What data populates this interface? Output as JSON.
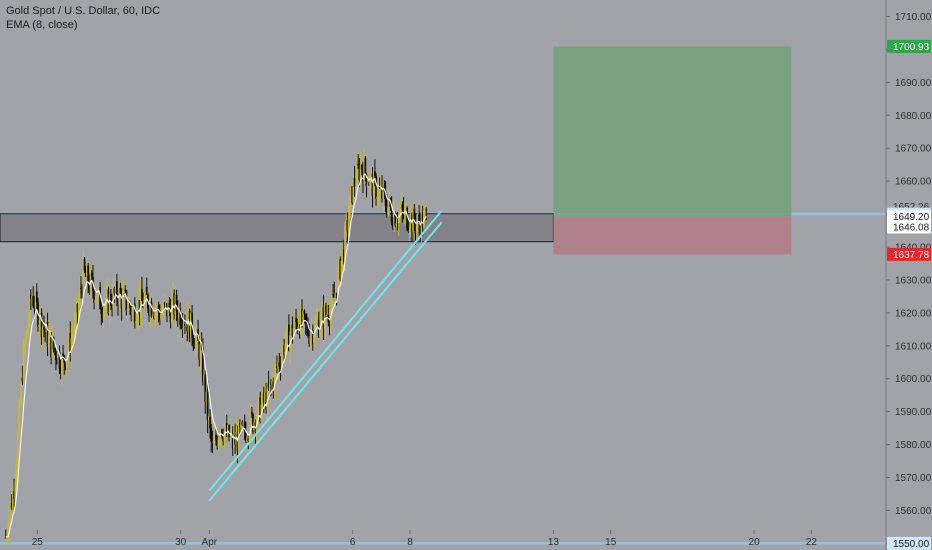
{
  "header": {
    "symbol_line": "Gold Spot / U.S. Dollar, 60, IDC",
    "indicator_line": "EMA (8, close)"
  },
  "colors": {
    "background": "#a2a3a9",
    "candle_up": "#c6b93a",
    "candle_down": "#111111",
    "ema_line": "#f2f2f2",
    "trend_channel": "#6fe7ef",
    "zone_fill": "#7c7d82",
    "target_fill": "#78a27f",
    "stop_fill": "#b08086",
    "level_line": "#8fc3e6",
    "tag_green": "#2da84a",
    "tag_red": "#e5262b",
    "tag_white": "#ffffff",
    "tag_blue": "#cfe6f5"
  },
  "chart_data": {
    "type": "candlestick",
    "title": "Gold Spot / U.S. Dollar, 60, IDC",
    "indicator": "EMA (8, close)",
    "ylim": [
      1548,
      1715
    ],
    "y_ticks": [
      1550,
      1560,
      1570,
      1580,
      1590,
      1600,
      1610,
      1620,
      1630,
      1640,
      1650,
      1660,
      1670,
      1680,
      1690,
      1700,
      1710
    ],
    "x_ticks": [
      {
        "label": "25",
        "day": 25
      },
      {
        "label": "30",
        "day": 30
      },
      {
        "label": "Apr",
        "day": 31
      },
      {
        "label": "6",
        "day": 36
      },
      {
        "label": "8",
        "day": 38
      },
      {
        "label": "13",
        "day": 43
      },
      {
        "label": "15",
        "day": 45
      },
      {
        "label": "20",
        "day": 50
      },
      {
        "label": "22",
        "day": 52
      }
    ],
    "x_range_days": [
      23.7,
      54.6
    ],
    "price_path": [
      {
        "day": 23.9,
        "price": 1552
      },
      {
        "day": 24.2,
        "price": 1568
      },
      {
        "day": 24.5,
        "price": 1605
      },
      {
        "day": 24.8,
        "price": 1626
      },
      {
        "day": 25.1,
        "price": 1618
      },
      {
        "day": 25.5,
        "price": 1610
      },
      {
        "day": 25.9,
        "price": 1605
      },
      {
        "day": 26.3,
        "price": 1615
      },
      {
        "day": 26.6,
        "price": 1632
      },
      {
        "day": 26.9,
        "price": 1628
      },
      {
        "day": 27.3,
        "price": 1622
      },
      {
        "day": 27.8,
        "price": 1626
      },
      {
        "day": 28.3,
        "price": 1621
      },
      {
        "day": 28.8,
        "price": 1624
      },
      {
        "day": 29.3,
        "price": 1620
      },
      {
        "day": 29.8,
        "price": 1622
      },
      {
        "day": 30.3,
        "price": 1617
      },
      {
        "day": 30.7,
        "price": 1608
      },
      {
        "day": 30.9,
        "price": 1592
      },
      {
        "day": 31.1,
        "price": 1578
      },
      {
        "day": 31.4,
        "price": 1586
      },
      {
        "day": 31.8,
        "price": 1580
      },
      {
        "day": 32.2,
        "price": 1584
      },
      {
        "day": 32.6,
        "price": 1588
      },
      {
        "day": 33.1,
        "price": 1596
      },
      {
        "day": 33.6,
        "price": 1610
      },
      {
        "day": 34.1,
        "price": 1618
      },
      {
        "day": 34.5,
        "price": 1614
      },
      {
        "day": 34.9,
        "price": 1618
      },
      {
        "day": 35.3,
        "price": 1622
      },
      {
        "day": 35.7,
        "price": 1640
      },
      {
        "day": 36.0,
        "price": 1658
      },
      {
        "day": 36.3,
        "price": 1665
      },
      {
        "day": 36.6,
        "price": 1660
      },
      {
        "day": 37.0,
        "price": 1656
      },
      {
        "day": 37.4,
        "price": 1650
      },
      {
        "day": 37.8,
        "price": 1650
      },
      {
        "day": 38.2,
        "price": 1647
      },
      {
        "day": 38.6,
        "price": 1649
      }
    ],
    "annotations": {
      "resistance_zone": {
        "from_day": 23.7,
        "to_day": 43.0,
        "top": 1650.1,
        "bottom": 1641.6
      },
      "trend_channel": [
        {
          "from": {
            "day": 31.0,
            "price": 1566
          },
          "to": {
            "day": 39.1,
            "price": 1651
          }
        },
        {
          "from": {
            "day": 31.0,
            "price": 1563
          },
          "to": {
            "day": 39.1,
            "price": 1647.5
          }
        }
      ],
      "long_position": {
        "from_day": 43.0,
        "to_day": 51.3,
        "entry": 1649.2,
        "target": 1700.93,
        "stop": 1637.78
      },
      "horizontal_levels": [
        1650.0,
        1550.0
      ]
    },
    "price_tags": [
      {
        "label": "1700.93",
        "price": 1700.93,
        "style": "green"
      },
      {
        "label": "1652.26",
        "price": 1652.26,
        "style": "plain"
      },
      {
        "label": "1650.00",
        "price": 1650.0,
        "style": "blue"
      },
      {
        "label": "1649.20",
        "price": 1649.2,
        "style": "white"
      },
      {
        "label": "1646.08",
        "price": 1646.08,
        "style": "white"
      },
      {
        "label": "1637.78",
        "price": 1637.78,
        "style": "red"
      },
      {
        "label": "1550.00",
        "price": 1550.0,
        "style": "blue"
      }
    ]
  }
}
